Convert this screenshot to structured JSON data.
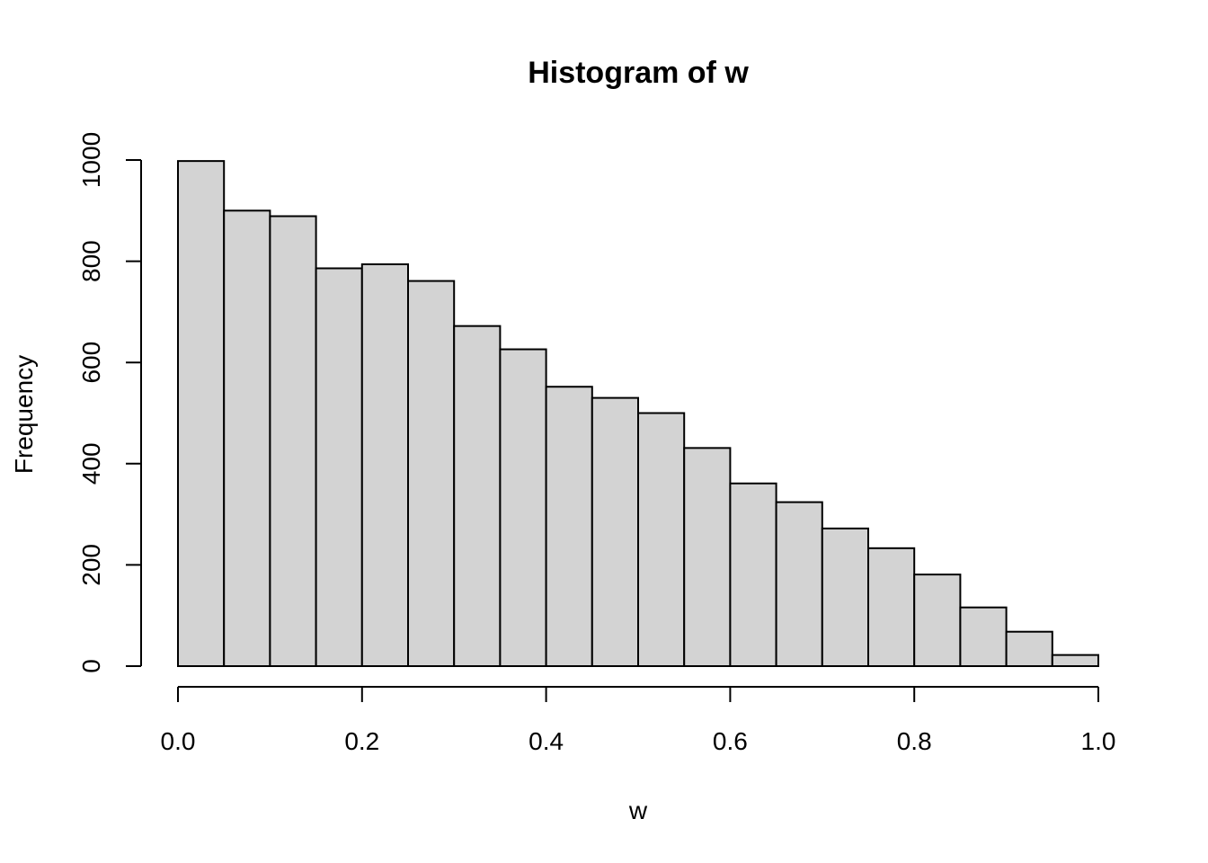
{
  "chart_data": {
    "type": "bar",
    "title": "Histogram of w",
    "xlabel": "w",
    "ylabel": "Frequency",
    "bin_edges": [
      0.0,
      0.05,
      0.1,
      0.15,
      0.2,
      0.25,
      0.3,
      0.35,
      0.4,
      0.45,
      0.5,
      0.55,
      0.6,
      0.65,
      0.7,
      0.75,
      0.8,
      0.85,
      0.9,
      0.95,
      1.0
    ],
    "values": [
      998,
      900,
      889,
      786,
      794,
      761,
      672,
      626,
      552,
      530,
      500,
      431,
      361,
      324,
      272,
      233,
      181,
      116,
      68,
      22
    ],
    "xlim": [
      0,
      1
    ],
    "ylim": [
      0,
      1000
    ],
    "x_ticks": [
      "0.0",
      "0.2",
      "0.4",
      "0.6",
      "0.8",
      "1.0"
    ],
    "x_tick_values": [
      0,
      0.2,
      0.4,
      0.6,
      0.8,
      1.0
    ],
    "y_ticks": [
      "0",
      "200",
      "400",
      "600",
      "800",
      "1000"
    ],
    "y_tick_values": [
      0,
      200,
      400,
      600,
      800,
      1000
    ],
    "grid": false,
    "bar_color": "#d3d3d3",
    "edge_color": "#000000"
  }
}
